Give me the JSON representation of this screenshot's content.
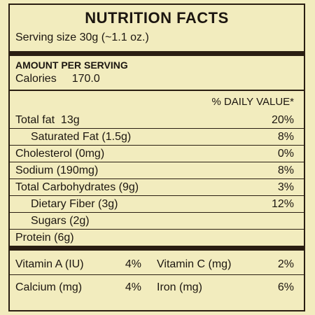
{
  "label": {
    "title": "NUTRITION FACTS",
    "serving": "Serving size 30g (~1.1 oz.)",
    "amount_header": "AMOUNT PER SERVING",
    "calories_label": "Calories",
    "calories_value": "170.0",
    "dv_header": "% DAILY VALUE*",
    "nutrients": [
      {
        "label": "Total fat  13g",
        "dv": "20%"
      },
      {
        "label": "Saturated Fat (1.5g)",
        "dv": "8%"
      },
      {
        "label": "Cholesterol (0mg)",
        "dv": "0%"
      },
      {
        "label": "Sodium (190mg)",
        "dv": "8%"
      },
      {
        "label": "Total Carbohydrates (9g)",
        "dv": "3%"
      },
      {
        "label": "Dietary Fiber (3g)",
        "dv": "12%"
      },
      {
        "label": "Sugars (2g)",
        "dv": ""
      },
      {
        "label": "Protein (6g)",
        "dv": ""
      }
    ],
    "vitamins": [
      {
        "name": "Vitamin A (IU)",
        "dv": "4%"
      },
      {
        "name": "Vitamin C (mg)",
        "dv": "2%"
      },
      {
        "name": "Calcium (mg)",
        "dv": "4%"
      },
      {
        "name": "Iron (mg)",
        "dv": "6%"
      }
    ],
    "colors": {
      "background": "#f2ecbe",
      "ink": "#2a1e12"
    }
  }
}
